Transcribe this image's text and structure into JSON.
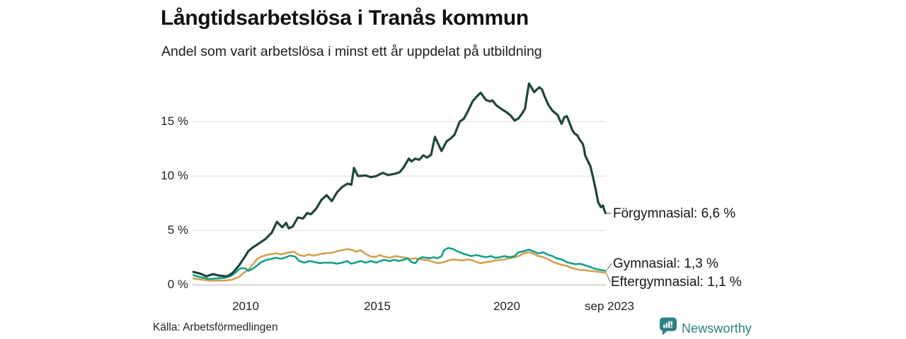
{
  "header": {
    "title": "Långtidsarbetslösa i Tranås kommun",
    "subtitle": "Andel som varit arbetslösa i minst ett år uppdelat på utbildning"
  },
  "footer": {
    "source": "Källa: Arbetsförmedlingen",
    "brand": "Newsworthy",
    "brand_color": "#2e7f80"
  },
  "chart_data": {
    "type": "line",
    "title": "Långtidsarbetslösa i Tranås kommun",
    "subtitle": "Andel som varit arbetslösa i minst ett år uppdelat på utbildning",
    "y_unit": "%",
    "grid": true,
    "legend_position": "end-of-line-labels-right",
    "y_axis": {
      "ticks": [
        "15 %",
        "10 %",
        "5 %",
        "0 %"
      ],
      "tick_values": [
        15,
        10,
        5,
        0
      ],
      "range": [
        0,
        19
      ]
    },
    "x_axis": {
      "ticks": [
        "2010",
        "2015",
        "2020",
        "sep 2023"
      ],
      "tick_values": [
        2010,
        2015,
        2020,
        2023.75
      ],
      "range": [
        2008.0,
        2023.83
      ]
    },
    "series": [
      {
        "name": "Förgymnasial",
        "color": "#1e4639",
        "end_value": 6.6,
        "end_label": "Förgymnasial: 6,6 %",
        "points": [
          [
            2008.0,
            1.2
          ],
          [
            2008.25,
            1.05
          ],
          [
            2008.5,
            0.8
          ],
          [
            2008.75,
            1.0
          ],
          [
            2009.0,
            0.85
          ],
          [
            2009.3,
            0.8
          ],
          [
            2009.5,
            1.1
          ],
          [
            2009.75,
            1.8
          ],
          [
            2010.0,
            2.7
          ],
          [
            2010.1,
            3.1
          ],
          [
            2010.25,
            3.4
          ],
          [
            2010.5,
            3.8
          ],
          [
            2010.75,
            4.2
          ],
          [
            2011.0,
            4.8
          ],
          [
            2011.2,
            5.8
          ],
          [
            2011.4,
            5.3
          ],
          [
            2011.55,
            5.7
          ],
          [
            2011.65,
            5.2
          ],
          [
            2011.8,
            5.35
          ],
          [
            2012.0,
            6.2
          ],
          [
            2012.2,
            6.1
          ],
          [
            2012.35,
            6.6
          ],
          [
            2012.5,
            6.5
          ],
          [
            2012.7,
            7.0
          ],
          [
            2012.9,
            7.8
          ],
          [
            2013.1,
            8.25
          ],
          [
            2013.3,
            7.7
          ],
          [
            2013.5,
            8.5
          ],
          [
            2013.7,
            9.0
          ],
          [
            2013.9,
            9.3
          ],
          [
            2014.05,
            9.2
          ],
          [
            2014.15,
            10.75
          ],
          [
            2014.3,
            10.0
          ],
          [
            2014.6,
            10.05
          ],
          [
            2014.8,
            9.9
          ],
          [
            2015.0,
            10.0
          ],
          [
            2015.25,
            10.3
          ],
          [
            2015.45,
            10.1
          ],
          [
            2015.7,
            10.2
          ],
          [
            2015.9,
            10.35
          ],
          [
            2016.05,
            10.8
          ],
          [
            2016.25,
            11.6
          ],
          [
            2016.35,
            11.35
          ],
          [
            2016.5,
            11.6
          ],
          [
            2016.65,
            11.5
          ],
          [
            2016.8,
            11.9
          ],
          [
            2016.95,
            11.7
          ],
          [
            2017.1,
            11.95
          ],
          [
            2017.25,
            13.6
          ],
          [
            2017.5,
            12.3
          ],
          [
            2017.7,
            13.2
          ],
          [
            2017.85,
            13.45
          ],
          [
            2018.0,
            13.8
          ],
          [
            2018.2,
            15.0
          ],
          [
            2018.35,
            15.25
          ],
          [
            2018.5,
            15.9
          ],
          [
            2018.7,
            16.9
          ],
          [
            2018.85,
            17.3
          ],
          [
            2019.0,
            17.65
          ],
          [
            2019.2,
            17.0
          ],
          [
            2019.35,
            16.85
          ],
          [
            2019.45,
            16.95
          ],
          [
            2019.6,
            16.5
          ],
          [
            2019.8,
            16.15
          ],
          [
            2020.0,
            15.85
          ],
          [
            2020.15,
            15.55
          ],
          [
            2020.3,
            15.1
          ],
          [
            2020.45,
            15.3
          ],
          [
            2020.6,
            15.8
          ],
          [
            2020.7,
            16.2
          ],
          [
            2020.78,
            17.5
          ],
          [
            2020.85,
            18.5
          ],
          [
            2020.95,
            18.1
          ],
          [
            2021.05,
            17.7
          ],
          [
            2021.15,
            17.95
          ],
          [
            2021.25,
            18.15
          ],
          [
            2021.35,
            17.95
          ],
          [
            2021.45,
            17.3
          ],
          [
            2021.6,
            16.5
          ],
          [
            2021.75,
            16.0
          ],
          [
            2021.85,
            15.8
          ],
          [
            2021.95,
            15.6
          ],
          [
            2022.0,
            15.3
          ],
          [
            2022.1,
            14.8
          ],
          [
            2022.2,
            15.4
          ],
          [
            2022.3,
            15.5
          ],
          [
            2022.4,
            14.9
          ],
          [
            2022.5,
            14.25
          ],
          [
            2022.6,
            13.9
          ],
          [
            2022.7,
            13.75
          ],
          [
            2022.8,
            13.3
          ],
          [
            2022.9,
            13.0
          ],
          [
            2022.95,
            12.6
          ],
          [
            2023.0,
            11.9
          ],
          [
            2023.1,
            11.4
          ],
          [
            2023.2,
            10.9
          ],
          [
            2023.3,
            9.9
          ],
          [
            2023.4,
            8.8
          ],
          [
            2023.5,
            7.6
          ],
          [
            2023.6,
            7.15
          ],
          [
            2023.68,
            7.3
          ],
          [
            2023.73,
            6.9
          ],
          [
            2023.78,
            6.6
          ]
        ]
      },
      {
        "name": "Gymnasial",
        "color": "#14a08b",
        "end_value": 1.3,
        "end_label": "Gymnasial: 1,3 %",
        "points": [
          [
            2008.0,
            0.9
          ],
          [
            2008.3,
            0.7
          ],
          [
            2008.6,
            0.55
          ],
          [
            2008.9,
            0.6
          ],
          [
            2009.2,
            0.65
          ],
          [
            2009.45,
            0.85
          ],
          [
            2009.6,
            1.1
          ],
          [
            2009.75,
            1.45
          ],
          [
            2009.85,
            1.55
          ],
          [
            2010.0,
            1.5
          ],
          [
            2010.1,
            1.3
          ],
          [
            2010.25,
            1.45
          ],
          [
            2010.45,
            1.8
          ],
          [
            2010.6,
            2.1
          ],
          [
            2010.8,
            2.3
          ],
          [
            2011.0,
            2.4
          ],
          [
            2011.15,
            2.5
          ],
          [
            2011.35,
            2.4
          ],
          [
            2011.5,
            2.5
          ],
          [
            2011.7,
            2.7
          ],
          [
            2011.9,
            2.6
          ],
          [
            2012.05,
            2.2
          ],
          [
            2012.25,
            2.05
          ],
          [
            2012.45,
            2.2
          ],
          [
            2012.65,
            2.1
          ],
          [
            2012.85,
            2.0
          ],
          [
            2013.0,
            2.05
          ],
          [
            2013.3,
            2.05
          ],
          [
            2013.5,
            1.95
          ],
          [
            2013.7,
            2.05
          ],
          [
            2013.9,
            2.2
          ],
          [
            2014.05,
            1.95
          ],
          [
            2014.2,
            2.05
          ],
          [
            2014.4,
            2.2
          ],
          [
            2014.6,
            2.05
          ],
          [
            2014.8,
            2.2
          ],
          [
            2015.0,
            2.05
          ],
          [
            2015.15,
            2.2
          ],
          [
            2015.3,
            2.3
          ],
          [
            2015.5,
            2.2
          ],
          [
            2015.7,
            2.3
          ],
          [
            2015.85,
            2.2
          ],
          [
            2016.05,
            2.3
          ],
          [
            2016.2,
            2.45
          ],
          [
            2016.35,
            2.1
          ],
          [
            2016.5,
            2.0
          ],
          [
            2016.6,
            2.35
          ],
          [
            2016.75,
            2.55
          ],
          [
            2016.9,
            2.5
          ],
          [
            2017.05,
            2.45
          ],
          [
            2017.2,
            2.55
          ],
          [
            2017.35,
            2.45
          ],
          [
            2017.5,
            2.65
          ],
          [
            2017.6,
            3.2
          ],
          [
            2017.75,
            3.4
          ],
          [
            2017.95,
            3.3
          ],
          [
            2018.1,
            3.1
          ],
          [
            2018.3,
            2.9
          ],
          [
            2018.5,
            2.75
          ],
          [
            2018.65,
            2.65
          ],
          [
            2018.85,
            2.75
          ],
          [
            2019.0,
            2.65
          ],
          [
            2019.2,
            2.55
          ],
          [
            2019.4,
            2.65
          ],
          [
            2019.55,
            2.5
          ],
          [
            2019.75,
            2.55
          ],
          [
            2019.9,
            2.65
          ],
          [
            2020.1,
            2.55
          ],
          [
            2020.3,
            2.65
          ],
          [
            2020.45,
            3.0
          ],
          [
            2020.65,
            3.1
          ],
          [
            2020.85,
            3.25
          ],
          [
            2021.0,
            3.1
          ],
          [
            2021.2,
            2.9
          ],
          [
            2021.4,
            3.0
          ],
          [
            2021.55,
            2.8
          ],
          [
            2021.75,
            2.65
          ],
          [
            2021.9,
            2.45
          ],
          [
            2022.1,
            2.35
          ],
          [
            2022.3,
            2.1
          ],
          [
            2022.45,
            2.0
          ],
          [
            2022.65,
            1.9
          ],
          [
            2022.8,
            1.95
          ],
          [
            2023.0,
            1.8
          ],
          [
            2023.15,
            1.7
          ],
          [
            2023.35,
            1.5
          ],
          [
            2023.55,
            1.4
          ],
          [
            2023.78,
            1.3
          ]
        ]
      },
      {
        "name": "Eftergymnasial",
        "color": "#d2a24f",
        "end_value": 1.1,
        "end_label": "Eftergymnasial: 1,1 %",
        "points": [
          [
            2008.0,
            0.6
          ],
          [
            2008.3,
            0.5
          ],
          [
            2008.6,
            0.4
          ],
          [
            2008.9,
            0.4
          ],
          [
            2009.2,
            0.4
          ],
          [
            2009.5,
            0.5
          ],
          [
            2009.75,
            0.75
          ],
          [
            2009.9,
            1.05
          ],
          [
            2010.1,
            1.4
          ],
          [
            2010.3,
            1.95
          ],
          [
            2010.45,
            2.4
          ],
          [
            2010.6,
            2.6
          ],
          [
            2010.8,
            2.75
          ],
          [
            2011.0,
            2.85
          ],
          [
            2011.2,
            2.9
          ],
          [
            2011.35,
            2.8
          ],
          [
            2011.5,
            2.9
          ],
          [
            2011.7,
            3.0
          ],
          [
            2011.85,
            3.05
          ],
          [
            2012.05,
            2.75
          ],
          [
            2012.25,
            2.65
          ],
          [
            2012.4,
            2.8
          ],
          [
            2012.6,
            2.7
          ],
          [
            2012.8,
            2.8
          ],
          [
            2013.0,
            2.9
          ],
          [
            2013.3,
            2.95
          ],
          [
            2013.5,
            3.1
          ],
          [
            2013.7,
            3.2
          ],
          [
            2013.9,
            3.3
          ],
          [
            2014.1,
            3.2
          ],
          [
            2014.25,
            3.05
          ],
          [
            2014.4,
            3.2
          ],
          [
            2014.6,
            2.85
          ],
          [
            2014.8,
            2.6
          ],
          [
            2015.0,
            2.6
          ],
          [
            2015.15,
            2.75
          ],
          [
            2015.3,
            2.6
          ],
          [
            2015.5,
            2.5
          ],
          [
            2015.75,
            2.65
          ],
          [
            2015.9,
            2.6
          ],
          [
            2016.1,
            2.5
          ],
          [
            2016.3,
            2.4
          ],
          [
            2016.5,
            2.45
          ],
          [
            2016.7,
            2.35
          ],
          [
            2016.85,
            2.3
          ],
          [
            2017.0,
            2.25
          ],
          [
            2017.2,
            2.1
          ],
          [
            2017.4,
            2.0
          ],
          [
            2017.6,
            2.1
          ],
          [
            2017.75,
            2.25
          ],
          [
            2017.95,
            2.35
          ],
          [
            2018.1,
            2.3
          ],
          [
            2018.3,
            2.25
          ],
          [
            2018.5,
            2.35
          ],
          [
            2018.7,
            2.25
          ],
          [
            2018.85,
            2.1
          ],
          [
            2019.0,
            2.0
          ],
          [
            2019.2,
            2.1
          ],
          [
            2019.4,
            2.15
          ],
          [
            2019.55,
            2.25
          ],
          [
            2019.75,
            2.3
          ],
          [
            2019.9,
            2.35
          ],
          [
            2020.1,
            2.45
          ],
          [
            2020.3,
            2.55
          ],
          [
            2020.45,
            2.65
          ],
          [
            2020.65,
            2.9
          ],
          [
            2020.85,
            3.0
          ],
          [
            2021.0,
            2.9
          ],
          [
            2021.2,
            2.65
          ],
          [
            2021.4,
            2.55
          ],
          [
            2021.55,
            2.4
          ],
          [
            2021.75,
            2.15
          ],
          [
            2021.9,
            2.0
          ],
          [
            2022.1,
            1.85
          ],
          [
            2022.3,
            1.75
          ],
          [
            2022.45,
            1.6
          ],
          [
            2022.65,
            1.45
          ],
          [
            2022.8,
            1.4
          ],
          [
            2023.0,
            1.35
          ],
          [
            2023.15,
            1.3
          ],
          [
            2023.35,
            1.25
          ],
          [
            2023.55,
            1.2
          ],
          [
            2023.78,
            1.1
          ]
        ]
      }
    ]
  }
}
